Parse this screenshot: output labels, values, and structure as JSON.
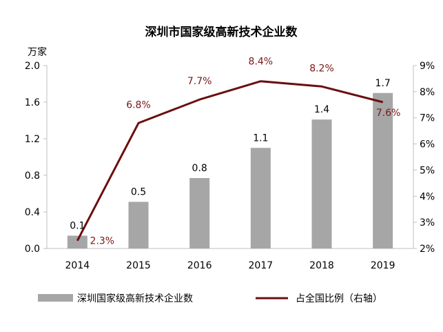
{
  "chart_data": {
    "type": "bar",
    "title": "深圳市国家级高新技术企业数",
    "y_left_unit": "万家",
    "categories": [
      "2014",
      "2015",
      "2016",
      "2017",
      "2018",
      "2019"
    ],
    "y_left": {
      "range": [
        0,
        2.0
      ],
      "ticks": [
        "0.0",
        "0.4",
        "0.8",
        "1.2",
        "1.6",
        "2.0"
      ]
    },
    "y_right": {
      "range": [
        2,
        9
      ],
      "ticks": [
        "2%",
        "3%",
        "4%",
        "5%",
        "6%",
        "7%",
        "8%",
        "9%"
      ]
    },
    "series": [
      {
        "name": "深圳国家级高新技术企业数",
        "type": "bar",
        "axis": "left",
        "color": "#a6a6a6",
        "values": [
          0.14,
          0.51,
          0.77,
          1.1,
          1.41,
          1.7
        ],
        "labels": [
          "0.1",
          "0.5",
          "0.8",
          "1.1",
          "1.4",
          "1.7"
        ]
      },
      {
        "name": "占全国比例（右轴）",
        "type": "line",
        "axis": "right",
        "color": "#6b0e0e",
        "values": [
          2.3,
          6.8,
          7.7,
          8.4,
          8.2,
          7.6
        ],
        "labels": [
          "2.3%",
          "6.8%",
          "7.7%",
          "8.4%",
          "8.2%",
          "7.6%"
        ]
      }
    ],
    "legend": "bottom",
    "grid": false
  }
}
